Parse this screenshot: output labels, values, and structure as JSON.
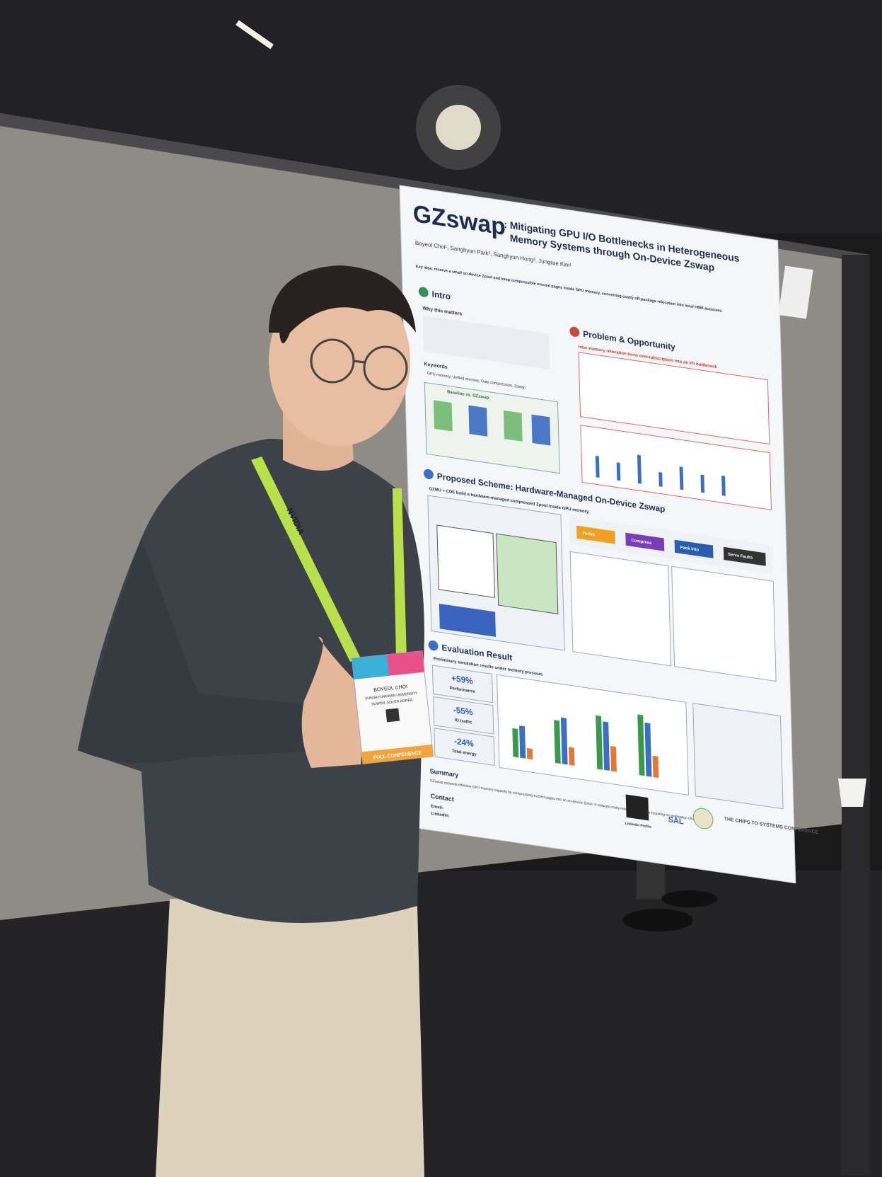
{
  "poster": {
    "title": "GZswap",
    "subtitle_line1": ": Mitigating GPU I/O Bottlenecks in Heterogeneous",
    "subtitle_line2": "Memory Systems through On-Device Zswap",
    "authors": "Boyeol Choi¹, Sanghyun Park², Sanghyun Hong³, Jungrae Kim¹",
    "key_idea": "Key idea: reserve a small on-device Zpool and keep compressible evicted pages inside GPU memory, converting costly off-package relocation into local HBM accesses.",
    "sections": [
      "Intro",
      "Problem & Opportunity",
      "Proposed Scheme: Hardware-Managed On-Device Zswap",
      "Evaluation Result"
    ],
    "intro_subheading": "Why this matters",
    "keywords_heading": "Keywords",
    "keywords": "GPU memory, Unified memory, Data compression, Zswap",
    "baseline_label": "Baseline vs. GZswap",
    "problem_caption": "Inter-memory relocation turns oversubscription into an I/O bottleneck",
    "scheme_caption": "GZMU + CDE build a hardware-managed compressed Zpool inside GPU memory.",
    "flow": [
      "Victim",
      "Compress",
      "Pack into",
      "Serve Faults"
    ],
    "eval_caption": "Preliminary simulation results under memory pressure",
    "results": [
      {
        "value": "+59%",
        "label": "Performance"
      },
      {
        "value": "-55%",
        "label": "IO traffic"
      },
      {
        "value": "-24%",
        "label": "Total energy"
      }
    ],
    "summary_heading": "Summary",
    "summary": "GZswap expands effective GPU memory capacity by compressing evicted pages into an on-device Zpool. It reduces costly relocation I/O while requiring no application changes.",
    "contact_heading": "Contact",
    "email": "Email:",
    "linkedin": "LinkedIn:",
    "linkedin_profile": "LinkedIn Profile",
    "lab": "SAL",
    "conference": "THE CHIPS TO SYSTEMS CONFERENCE"
  },
  "badge": {
    "name": "BOYEOL CHOI",
    "affiliation": "SUNGKYUNKWAN UNIVERSITY",
    "location": "SUWON, SOUTH KOREA",
    "pass": "FULL CONFERENCE"
  },
  "lanyard": "NVIDIA"
}
